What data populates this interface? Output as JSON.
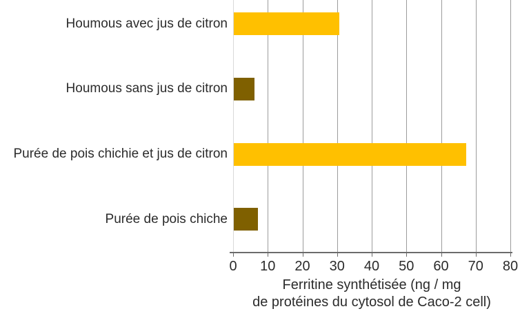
{
  "chart_data": {
    "type": "bar",
    "orientation": "horizontal",
    "title": "",
    "categories": [
      "Houmous avec jus de citron",
      "Houmous sans jus de citron",
      "Purée de pois chichie et jus de citron",
      "Purée de pois chiche"
    ],
    "values": [
      30.5,
      6,
      67,
      7
    ],
    "bar_colors": [
      "#FFC000",
      "#7F6000",
      "#FFC000",
      "#7F6000"
    ],
    "xlabel": "Ferritine synthétisée (ng / mg de protéines du cytosol de Caco-2 cell)",
    "xlabel_lines": [
      "Ferritine synthétisée (ng / mg",
      "de protéines du cytosol de Caco-2 cell)"
    ],
    "ylabel": "",
    "xlim": [
      0,
      80
    ],
    "xticks": [
      0,
      10,
      20,
      30,
      40,
      50,
      60,
      70,
      80
    ],
    "grid": "vertical",
    "legend": "none",
    "colors": {
      "bar_light": "#FFC000",
      "bar_dark": "#7F6000",
      "gridline": "#9b9b9b",
      "zero_gridline": "#d9d9d9",
      "axis_line": "#6b6b6b",
      "text": "#2b2b2b",
      "background": "#ffffff"
    }
  }
}
